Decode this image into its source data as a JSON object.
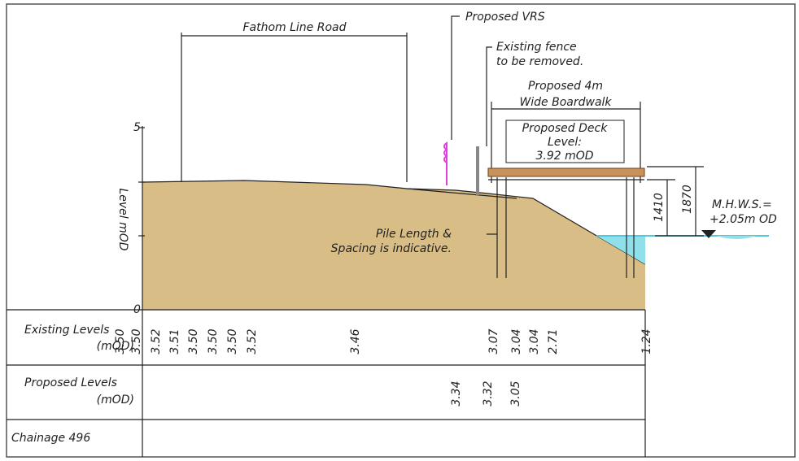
{
  "drawing": {
    "road_label": "Fathom Line Road",
    "vrs_label": "Proposed VRS",
    "fence_label": [
      "Existing fence",
      "to be removed."
    ],
    "boardwalk_label": [
      "Proposed 4m",
      "Wide Boardwalk"
    ],
    "deck_label": [
      "Proposed Deck",
      "Level:",
      "3.92 mOD"
    ],
    "axis_label": "Level mOD",
    "axis_ticks": [
      "5",
      "0"
    ],
    "dims": [
      "1410",
      "1870"
    ],
    "mhws": [
      "M.H.W.S.=",
      "+2.05m OD"
    ],
    "pile_note": [
      "Pile Length &",
      "Spacing is indicative."
    ]
  },
  "table": {
    "rows": [
      {
        "label": [
          "Existing Levels",
          "(mOD)"
        ],
        "values": [
          "3.50",
          "3.50",
          "3.52",
          "3.51",
          "3.50",
          "3.50",
          "3.50",
          "3.52",
          "3.46",
          "3.07",
          "3.04",
          "3.04",
          "2.71",
          "1.24"
        ]
      },
      {
        "label": [
          "Proposed Levels",
          "(mOD)"
        ],
        "values": [
          "3.34",
          "3.32",
          "3.05"
        ]
      },
      {
        "label": [
          "Chainage 496"
        ]
      }
    ]
  }
}
